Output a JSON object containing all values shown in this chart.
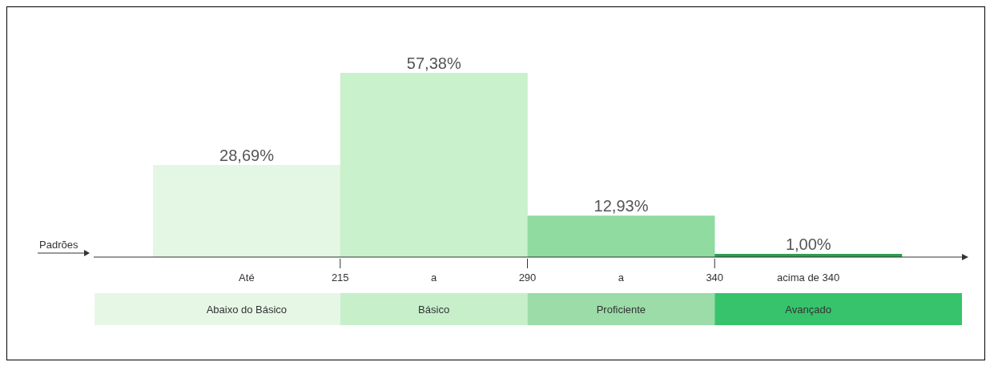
{
  "chart_data": {
    "type": "bar",
    "categories": [
      "Abaixo do Básico",
      "Básico",
      "Proficiente",
      "Avançado"
    ],
    "values": [
      28.69,
      57.38,
      12.93,
      1.0
    ],
    "value_labels": [
      "28,69%",
      "57,38%",
      "12,93%",
      "1,00%"
    ],
    "colors": [
      "#e4f6e4",
      "#c9f1cb",
      "#8fdba0",
      "#2e9e50"
    ],
    "annotations": [
      "Padrões",
      "Até",
      "215",
      "a",
      "290",
      "a",
      "340",
      "acima de 340"
    ]
  }
}
